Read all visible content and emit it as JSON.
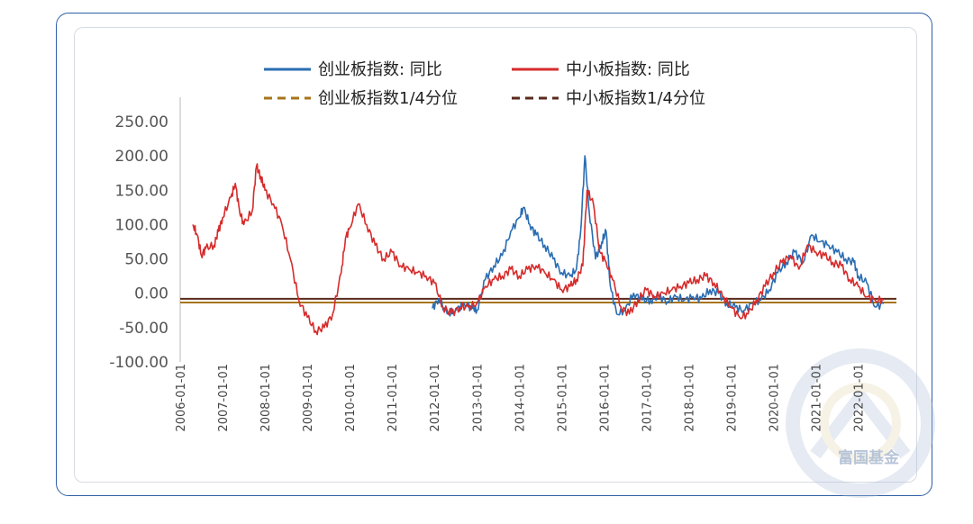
{
  "chart_data": {
    "type": "line",
    "title": "",
    "xlabel": "",
    "ylabel": "",
    "ylim": [
      -100,
      250
    ],
    "y_ticks": [
      "250.00",
      "200.00",
      "150.00",
      "100.00",
      "50.00",
      "0.00",
      "-50.00",
      "-100.00"
    ],
    "x_ticks": [
      "2006-01-01",
      "2007-01-01",
      "2008-01-01",
      "2009-01-01",
      "2010-01-01",
      "2011-01-01",
      "2012-01-01",
      "2013-01-01",
      "2014-01-01",
      "2015-01-01",
      "2016-01-01",
      "2017-01-01",
      "2018-01-01",
      "2019-01-01",
      "2020-01-01",
      "2021-01-01",
      "2022-01-01"
    ],
    "legend_position": "top",
    "grid": false,
    "series": [
      {
        "name": "创业板指数: 同比",
        "color": "#2a6db3",
        "style": "solid",
        "x": [
          2011.95,
          2012.1,
          2012.3,
          2012.5,
          2012.7,
          2012.9,
          2013.0,
          2013.2,
          2013.4,
          2013.6,
          2013.8,
          2014.0,
          2014.1,
          2014.25,
          2014.4,
          2014.6,
          2014.8,
          2015.0,
          2015.2,
          2015.35,
          2015.45,
          2015.55,
          2015.65,
          2015.8,
          2015.95,
          2016.05,
          2016.15,
          2016.3,
          2016.5,
          2016.7,
          2016.9,
          2017.1,
          2017.3,
          2017.5,
          2017.7,
          2017.9,
          2018.1,
          2018.3,
          2018.5,
          2018.7,
          2018.9,
          2019.1,
          2019.3,
          2019.5,
          2019.7,
          2019.9,
          2020.1,
          2020.3,
          2020.5,
          2020.7,
          2020.9,
          2021.1,
          2021.3,
          2021.5,
          2021.7,
          2021.9,
          2022.0,
          2022.2,
          2022.4,
          2022.6
        ],
        "values": [
          -22,
          -8,
          -30,
          -25,
          -15,
          -22,
          -25,
          20,
          40,
          55,
          90,
          110,
          125,
          100,
          85,
          70,
          50,
          30,
          25,
          35,
          90,
          200,
          120,
          50,
          75,
          90,
          10,
          -30,
          -25,
          0,
          -10,
          -10,
          -5,
          -12,
          -5,
          -10,
          -5,
          -8,
          5,
          0,
          -15,
          -20,
          -25,
          -15,
          -10,
          5,
          30,
          45,
          60,
          45,
          85,
          75,
          70,
          60,
          50,
          45,
          25,
          15,
          -20,
          -15
        ]
      },
      {
        "name": "中小板指数: 同比",
        "color": "#d62b2b",
        "style": "solid",
        "x": [
          2006.3,
          2006.4,
          2006.5,
          2006.6,
          2006.8,
          2006.9,
          2007.0,
          2007.2,
          2007.3,
          2007.4,
          2007.5,
          2007.7,
          2007.8,
          2007.9,
          2008.0,
          2008.2,
          2008.4,
          2008.6,
          2008.8,
          2009.0,
          2009.2,
          2009.4,
          2009.6,
          2009.8,
          2009.9,
          2010.0,
          2010.2,
          2010.4,
          2010.6,
          2010.8,
          2011.0,
          2011.2,
          2011.4,
          2011.6,
          2011.8,
          2012.0,
          2012.2,
          2012.4,
          2012.6,
          2012.8,
          2013.0,
          2013.2,
          2013.4,
          2013.6,
          2013.8,
          2014.0,
          2014.2,
          2014.4,
          2014.6,
          2014.8,
          2015.0,
          2015.2,
          2015.35,
          2015.5,
          2015.6,
          2015.75,
          2015.9,
          2016.05,
          2016.2,
          2016.4,
          2016.6,
          2016.8,
          2017.0,
          2017.2,
          2017.4,
          2017.6,
          2017.8,
          2018.0,
          2018.2,
          2018.4,
          2018.6,
          2018.8,
          2019.0,
          2019.2,
          2019.4,
          2019.6,
          2019.8,
          2020.0,
          2020.2,
          2020.4,
          2020.6,
          2020.8,
          2021.0,
          2021.2,
          2021.4,
          2021.6,
          2021.8,
          2022.0,
          2022.2,
          2022.4,
          2022.6
        ],
        "values": [
          100,
          85,
          55,
          65,
          70,
          90,
          110,
          140,
          160,
          120,
          100,
          120,
          185,
          170,
          150,
          130,
          100,
          50,
          -10,
          -35,
          -55,
          -50,
          -30,
          30,
          80,
          95,
          130,
          100,
          70,
          50,
          60,
          40,
          35,
          30,
          25,
          15,
          -20,
          -30,
          -20,
          -20,
          -15,
          10,
          20,
          25,
          35,
          25,
          35,
          40,
          30,
          20,
          5,
          10,
          20,
          40,
          150,
          130,
          60,
          45,
          20,
          -20,
          -30,
          -10,
          5,
          -5,
          0,
          5,
          10,
          15,
          20,
          25,
          15,
          -5,
          -20,
          -35,
          -30,
          -10,
          10,
          30,
          45,
          55,
          35,
          70,
          60,
          55,
          45,
          40,
          20,
          10,
          -5,
          -10,
          -10
        ]
      },
      {
        "name": "创业板指数1/4分位",
        "color": "#a8741a",
        "style": "dashed",
        "y": -13.5
      },
      {
        "name": "中小板指数1/4分位",
        "color": "#5a2a1c",
        "style": "dashed",
        "y": -8
      }
    ]
  },
  "watermark": {
    "text": "富国基金"
  }
}
